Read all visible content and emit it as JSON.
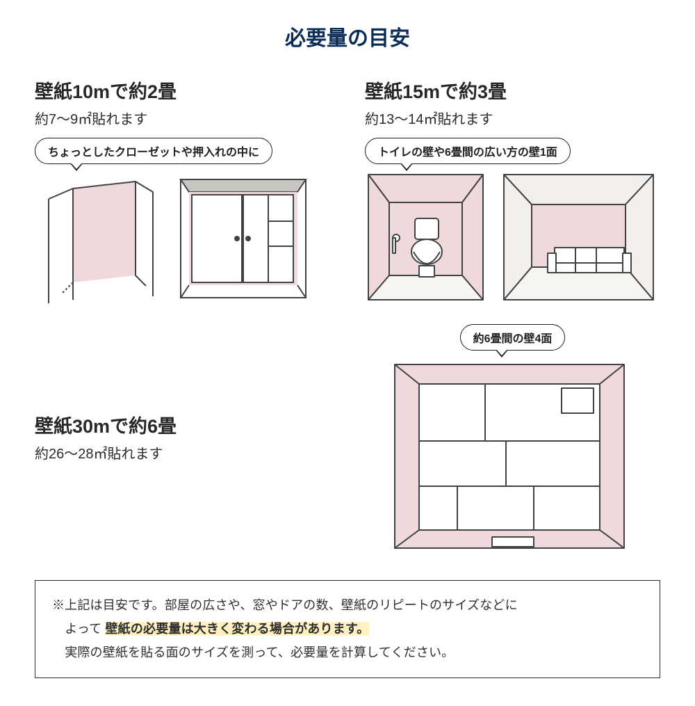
{
  "colors": {
    "title": "#0a2c56",
    "heading": "#262729",
    "subtext": "#2a2b2c",
    "bubbleBorder": "#1c1d1f",
    "bubbleText": "#1c1d1f",
    "noteBorder": "#2c2d2f",
    "noteText": "#2d2e30",
    "noteHighlightText": "#2b2c2e",
    "noteHighlightBg": "#fef0c0",
    "illusLine": "#35383b",
    "illusFill": "#efd9da",
    "illusFloor": "#f7f5f2",
    "illusGrey": "#c2c0bd"
  },
  "typography": {
    "titleSize": 30,
    "headingSize": 27,
    "subSize": 20,
    "bubbleSize": 16,
    "noteSize": 18
  },
  "title": "必要量の目安",
  "sections": {
    "s10": {
      "heading": "壁紙10mで約2畳",
      "sub": "約7〜9㎡貼れます",
      "bubble": "ちょっとしたクローゼットや押入れの中に"
    },
    "s15": {
      "heading": "壁紙15mで約3畳",
      "sub": "約13〜14㎡貼れます",
      "bubble": "トイレの壁や6畳間の広い方の壁1面"
    },
    "s30": {
      "heading": "壁紙30mで約6畳",
      "sub": "約26〜28㎡貼れます",
      "bubble": "約6畳間の壁4面"
    }
  },
  "note": {
    "lead": "※上記は目安です。部屋の広さや、窓やドアの数、壁紙のリピートのサイズなどに",
    "cont": "よって",
    "hl": "壁紙の必要量は大きく変わる場合があります。",
    "tail": "実際の壁紙を貼る面のサイズを測って、必要量を計算してください。"
  }
}
